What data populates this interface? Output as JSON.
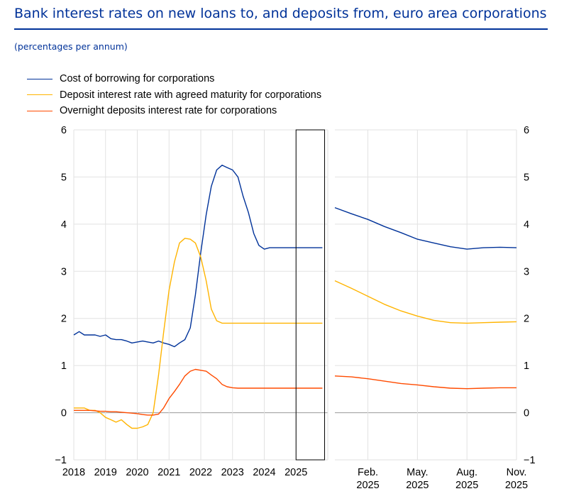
{
  "title": "Bank interest rates on new loans to, and deposits from, euro area corporations",
  "subtitle": "(percentages per annum)",
  "chart_data": {
    "type": "line",
    "grid": true,
    "ylim": [
      -1,
      6
    ],
    "yticks": [
      "−1",
      "0",
      "1",
      "2",
      "3",
      "4",
      "5",
      "6"
    ],
    "legend_position": "top-left",
    "series": [
      {
        "name": "Cost of borrowing for corporations",
        "color": "#003299"
      },
      {
        "name": "Deposit interest rate with agreed maturity for corporations",
        "color": "#ffb400"
      },
      {
        "name": "Overnight deposits interest rate for corporations",
        "color": "#ff4b00"
      }
    ],
    "panels": [
      {
        "id": "left",
        "x_labels": [
          "2018",
          "2019",
          "2020",
          "2021",
          "2022",
          "2023",
          "2024",
          "2025"
        ],
        "x_range": [
          2018,
          2026
        ],
        "highlight_range": [
          2025.0,
          2025.9
        ],
        "x": [
          2018.0,
          2018.17,
          2018.33,
          2018.5,
          2018.67,
          2018.83,
          2019.0,
          2019.17,
          2019.33,
          2019.5,
          2019.67,
          2019.83,
          2020.0,
          2020.17,
          2020.33,
          2020.5,
          2020.67,
          2020.83,
          2021.0,
          2021.17,
          2021.33,
          2021.5,
          2021.67,
          2021.83,
          2022.0,
          2022.17,
          2022.33,
          2022.5,
          2022.67,
          2022.83,
          2023.0,
          2023.17,
          2023.33,
          2023.5,
          2023.67,
          2023.83,
          2024.0,
          2024.17,
          2024.33,
          2024.5,
          2024.67,
          2024.83,
          2025.0,
          2025.17,
          2025.33,
          2025.5,
          2025.67,
          2025.83
        ],
        "series_values": [
          [
            1.65,
            1.72,
            1.65,
            1.65,
            1.65,
            1.62,
            1.65,
            1.57,
            1.55,
            1.55,
            1.52,
            1.48,
            1.5,
            1.52,
            1.5,
            1.48,
            1.52,
            1.48,
            1.45,
            1.4,
            1.48,
            1.55,
            1.8,
            2.5,
            3.4,
            4.2,
            4.8,
            5.15,
            5.25,
            5.2,
            5.15,
            5.0,
            4.6,
            4.25,
            3.8,
            3.55,
            3.47,
            3.5,
            3.5,
            3.5,
            3.5,
            3.5,
            3.5,
            3.5,
            3.5,
            3.5,
            3.5,
            3.5
          ],
          [
            0.1,
            0.1,
            0.1,
            0.05,
            0.05,
            0.0,
            -0.1,
            -0.15,
            -0.2,
            -0.15,
            -0.25,
            -0.33,
            -0.33,
            -0.3,
            -0.25,
            0.0,
            0.8,
            1.7,
            2.6,
            3.2,
            3.6,
            3.7,
            3.68,
            3.6,
            3.3,
            2.8,
            2.2,
            1.95,
            1.9,
            1.9,
            1.9,
            1.9,
            1.9,
            1.9,
            1.9,
            1.9,
            1.9,
            1.9,
            1.9,
            1.9,
            1.9,
            1.9,
            1.9,
            1.9,
            1.9,
            1.9,
            1.9,
            1.9
          ],
          [
            0.05,
            0.05,
            0.05,
            0.05,
            0.04,
            0.03,
            0.03,
            0.02,
            0.02,
            0.01,
            0.0,
            -0.01,
            -0.02,
            -0.04,
            -0.05,
            -0.05,
            -0.03,
            0.1,
            0.3,
            0.45,
            0.6,
            0.78,
            0.88,
            0.92,
            0.9,
            0.88,
            0.8,
            0.72,
            0.6,
            0.55,
            0.53,
            0.52,
            0.52,
            0.52,
            0.52,
            0.52,
            0.52,
            0.52,
            0.52,
            0.52,
            0.52,
            0.52,
            0.52,
            0.52,
            0.52,
            0.52,
            0.52,
            0.52
          ]
        ]
      },
      {
        "id": "right",
        "x_labels": [
          [
            "Feb.",
            "2025"
          ],
          [
            "May.",
            "2025"
          ],
          [
            "Aug.",
            "2025"
          ],
          [
            "Nov.",
            "2025"
          ]
        ],
        "x_label_months": [
          2,
          5,
          8,
          11
        ],
        "x_range": [
          0,
          11
        ],
        "x": [
          0,
          1,
          2,
          3,
          4,
          5,
          6,
          7,
          8,
          9,
          10,
          11
        ],
        "series_values": [
          [
            4.35,
            4.22,
            4.1,
            3.95,
            3.82,
            3.68,
            3.6,
            3.52,
            3.47,
            3.5,
            3.51,
            3.5
          ],
          [
            2.8,
            2.64,
            2.47,
            2.3,
            2.16,
            2.05,
            1.96,
            1.91,
            1.9,
            1.91,
            1.92,
            1.93
          ],
          [
            0.78,
            0.76,
            0.72,
            0.67,
            0.62,
            0.59,
            0.55,
            0.52,
            0.51,
            0.52,
            0.53,
            0.53
          ]
        ]
      }
    ]
  }
}
